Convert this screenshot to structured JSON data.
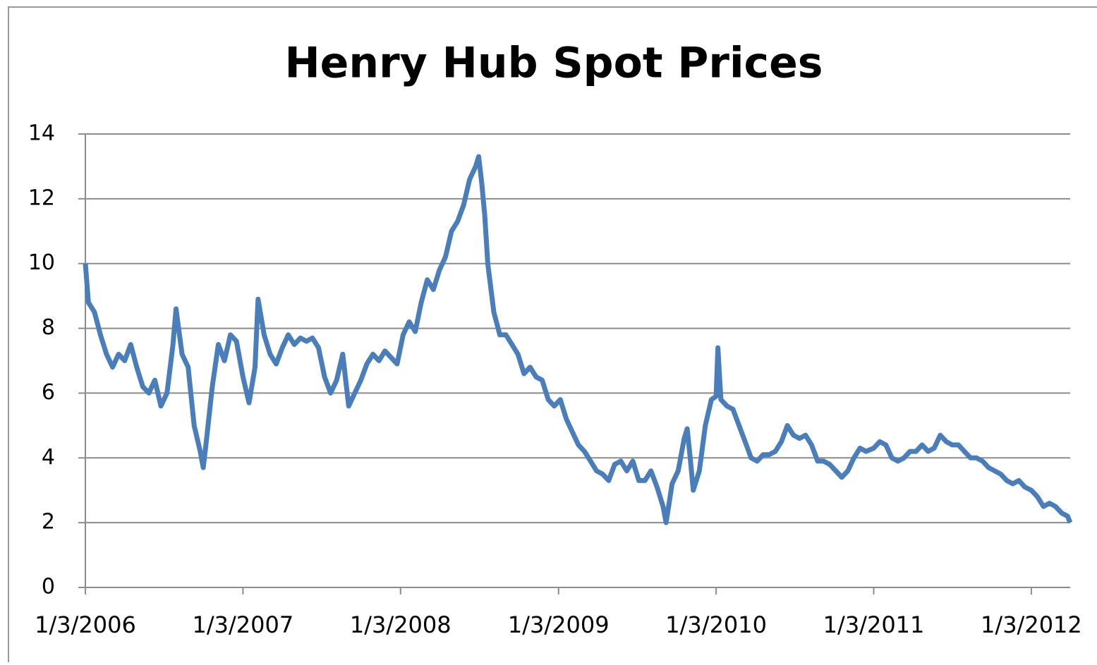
{
  "chart_data": {
    "type": "line",
    "title": "Henry Hub Spot Prices",
    "x": [
      "1/3/2006",
      "1/10/2006",
      "1/24/2006",
      "2/7/2006",
      "2/21/2006",
      "3/7/2006",
      "3/21/2006",
      "4/4/2006",
      "4/18/2006",
      "5/2/2006",
      "5/16/2006",
      "5/30/2006",
      "6/13/2006",
      "6/27/2006",
      "7/11/2006",
      "7/25/2006",
      "8/1/2006",
      "8/15/2006",
      "8/29/2006",
      "9/12/2006",
      "9/26/2006",
      "10/3/2006",
      "10/10/2006",
      "10/24/2006",
      "11/7/2006",
      "11/21/2006",
      "12/5/2006",
      "12/19/2006",
      "1/3/2007",
      "1/17/2007",
      "1/31/2007",
      "2/7/2007",
      "2/21/2007",
      "3/7/2007",
      "3/21/2007",
      "4/4/2007",
      "4/18/2007",
      "5/2/2007",
      "5/16/2007",
      "5/30/2007",
      "6/13/2007",
      "6/27/2007",
      "7/11/2007",
      "7/25/2007",
      "8/8/2007",
      "8/22/2007",
      "9/5/2007",
      "9/19/2007",
      "10/3/2007",
      "10/17/2007",
      "10/31/2007",
      "11/14/2007",
      "11/28/2007",
      "12/12/2007",
      "12/26/2007",
      "1/9/2008",
      "1/23/2008",
      "2/6/2008",
      "2/20/2008",
      "3/5/2008",
      "3/19/2008",
      "4/2/2008",
      "4/16/2008",
      "4/30/2008",
      "5/14/2008",
      "5/28/2008",
      "6/11/2008",
      "6/25/2008",
      "7/2/2008",
      "7/9/2008",
      "7/16/2008",
      "7/23/2008",
      "8/6/2008",
      "8/20/2008",
      "9/3/2008",
      "9/17/2008",
      "10/1/2008",
      "10/15/2008",
      "10/29/2008",
      "11/12/2008",
      "11/26/2008",
      "12/10/2008",
      "12/24/2008",
      "1/7/2009",
      "1/21/2009",
      "2/4/2009",
      "2/18/2009",
      "3/4/2009",
      "3/18/2009",
      "4/1/2009",
      "4/15/2009",
      "4/29/2009",
      "5/13/2009",
      "5/27/2009",
      "6/10/2009",
      "6/24/2009",
      "7/8/2009",
      "7/22/2009",
      "8/5/2009",
      "8/19/2009",
      "9/2/2009",
      "9/9/2009",
      "9/23/2009",
      "10/7/2009",
      "10/21/2009",
      "10/28/2009",
      "11/4/2009",
      "11/11/2009",
      "11/25/2009",
      "12/9/2009",
      "12/23/2009",
      "1/3/2010",
      "1/7/2010",
      "1/14/2010",
      "1/28/2010",
      "2/11/2010",
      "2/25/2010",
      "3/11/2010",
      "3/25/2010",
      "4/8/2010",
      "4/22/2010",
      "5/6/2010",
      "5/20/2010",
      "6/3/2010",
      "6/17/2010",
      "7/1/2010",
      "7/15/2010",
      "7/29/2010",
      "8/12/2010",
      "8/26/2010",
      "9/9/2010",
      "9/23/2010",
      "10/7/2010",
      "10/21/2010",
      "11/4/2010",
      "11/18/2010",
      "12/2/2010",
      "12/16/2010",
      "1/3/2011",
      "1/17/2011",
      "1/31/2011",
      "2/14/2011",
      "2/28/2011",
      "3/14/2011",
      "3/28/2011",
      "4/11/2011",
      "4/25/2011",
      "5/9/2011",
      "5/23/2011",
      "6/6/2011",
      "6/20/2011",
      "7/4/2011",
      "7/18/2011",
      "8/1/2011",
      "8/15/2011",
      "8/29/2011",
      "9/12/2011",
      "9/26/2011",
      "10/10/2011",
      "10/24/2011",
      "11/7/2011",
      "11/21/2011",
      "12/5/2011",
      "12/19/2011",
      "1/3/2012",
      "1/17/2012",
      "1/31/2012",
      "2/14/2012",
      "2/28/2012",
      "3/13/2012",
      "3/27/2012",
      "4/2/2012"
    ],
    "values": [
      10.0,
      8.8,
      8.5,
      7.8,
      7.2,
      6.8,
      7.2,
      7.0,
      7.5,
      6.8,
      6.2,
      6.0,
      6.4,
      5.6,
      6.0,
      7.5,
      8.6,
      7.2,
      6.8,
      5.0,
      4.2,
      3.7,
      4.5,
      6.2,
      7.5,
      7.0,
      7.8,
      7.6,
      6.5,
      5.7,
      6.8,
      8.9,
      7.8,
      7.2,
      6.9,
      7.4,
      7.8,
      7.5,
      7.7,
      7.6,
      7.7,
      7.4,
      6.5,
      6.0,
      6.4,
      7.2,
      5.6,
      6.0,
      6.4,
      6.9,
      7.2,
      7.0,
      7.3,
      7.1,
      6.9,
      7.8,
      8.2,
      7.9,
      8.8,
      9.5,
      9.2,
      9.8,
      10.2,
      11.0,
      11.3,
      11.8,
      12.6,
      13.0,
      13.3,
      12.5,
      11.5,
      10.0,
      8.5,
      7.8,
      7.8,
      7.5,
      7.2,
      6.6,
      6.8,
      6.5,
      6.4,
      5.8,
      5.6,
      5.8,
      5.2,
      4.8,
      4.4,
      4.2,
      3.9,
      3.6,
      3.5,
      3.3,
      3.8,
      3.9,
      3.6,
      3.9,
      3.3,
      3.3,
      3.6,
      3.1,
      2.5,
      2.0,
      3.2,
      3.6,
      4.6,
      4.9,
      4.0,
      3.0,
      3.6,
      5.0,
      5.8,
      5.9,
      7.4,
      5.8,
      5.6,
      5.5,
      5.0,
      4.5,
      4.0,
      3.9,
      4.1,
      4.1,
      4.2,
      4.5,
      5.0,
      4.7,
      4.6,
      4.7,
      4.4,
      3.9,
      3.9,
      3.8,
      3.6,
      3.4,
      3.6,
      4.0,
      4.3,
      4.2,
      4.3,
      4.5,
      4.4,
      4.0,
      3.9,
      4.0,
      4.2,
      4.2,
      4.4,
      4.2,
      4.3,
      4.7,
      4.5,
      4.4,
      4.4,
      4.2,
      4.0,
      4.0,
      3.9,
      3.7,
      3.6,
      3.5,
      3.3,
      3.2,
      3.3,
      3.1,
      3.0,
      2.8,
      2.5,
      2.6,
      2.5,
      2.3,
      2.2,
      2.0
    ],
    "color": "#4a7ebb",
    "xlim": [
      "1/3/2006",
      "4/2/2012"
    ],
    "xticks": [
      "1/3/2006",
      "1/3/2007",
      "1/3/2008",
      "1/3/2009",
      "1/3/2010",
      "1/3/2011",
      "1/3/2012"
    ],
    "ylim": [
      0,
      14
    ],
    "yticks": [
      0,
      2,
      4,
      6,
      8,
      10,
      12,
      14
    ],
    "grid": true
  }
}
